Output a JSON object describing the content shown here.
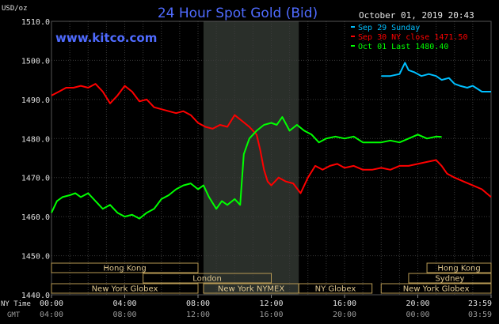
{
  "title": "24 Hour Spot Gold (Bid)",
  "timestamp": "October 01, 2019 20:43",
  "watermark": "www.kitco.com",
  "currency_label": "USD/oz",
  "colors": {
    "background": "#000000",
    "grid": "#3a3a3a",
    "title": "#4f6bff",
    "sep29": "#00bfff",
    "sep30": "#ff0000",
    "oct01": "#00ff00",
    "market_box": "#b89a54",
    "shade": "#2a2f2a"
  },
  "legend": [
    {
      "label": "Sep 29 Sunday",
      "color": "#00bfff"
    },
    {
      "label": "Sep 30 NY close 1471.50",
      "color": "#ff0000"
    },
    {
      "label": "Oct 01 Last 1480.40",
      "color": "#00ff00"
    }
  ],
  "markets": [
    {
      "label": "Hong Kong",
      "start": 0.0,
      "end": 8.0
    },
    {
      "label": "London",
      "start": 5.0,
      "end": 12.0
    },
    {
      "label": "New York Globex",
      "start": 0.0,
      "end": 8.0
    },
    {
      "label": "New York NYMEX",
      "start": 8.3,
      "end": 13.5
    },
    {
      "label": "NY Globex",
      "start": 13.5,
      "end": 17.5
    },
    {
      "label": "Hong Kong",
      "start": 20.5,
      "end": 24.0
    },
    {
      "label": "Sydney",
      "start": 19.5,
      "end": 24.0
    },
    {
      "label": "New York Globex",
      "start": 18.0,
      "end": 24.0
    }
  ],
  "bottom_axis": {
    "row1_label": "NY Time",
    "row2_label": "GMT",
    "ny_ticks": [
      "00:00",
      "04:00",
      "08:00",
      "12:00",
      "16:00",
      "20:00",
      "23:59"
    ],
    "gmt_ticks": [
      "04:00",
      "08:00",
      "12:00",
      "16:00",
      "20:00",
      "00:00",
      "03:59"
    ]
  },
  "chart_data": {
    "type": "line",
    "title": "24 Hour Spot Gold (Bid)",
    "ylabel": "USD/oz",
    "ylim": [
      1440,
      1510
    ],
    "y_ticks": [
      "1440.0",
      "1450.0",
      "1460.0",
      "1470.0",
      "1480.0",
      "1490.0",
      "1500.0",
      "1510.0"
    ],
    "y_tick_values": [
      1440,
      1450,
      1460,
      1470,
      1480,
      1490,
      1500,
      1510
    ],
    "xlim": [
      0,
      24
    ],
    "x_unit": "hours (NY time)",
    "shaded_interval": [
      8.3,
      13.5
    ],
    "grid": true,
    "series": [
      {
        "name": "Sep 29 Sunday",
        "color": "#00bfff",
        "x": [
          18.0,
          18.5,
          19.0,
          19.3,
          19.5,
          19.8,
          20.2,
          20.6,
          21.0,
          21.3,
          21.7,
          22.0,
          22.3,
          22.7,
          23.0,
          23.5,
          24.0
        ],
        "y": [
          1496.0,
          1496.0,
          1496.5,
          1499.4,
          1497.5,
          1497.0,
          1496.0,
          1496.5,
          1496.0,
          1495.0,
          1495.5,
          1494.0,
          1493.5,
          1493.0,
          1493.5,
          1492.0,
          1492.0
        ]
      },
      {
        "name": "Sep 30 NY close 1471.50",
        "color": "#ff0000",
        "x": [
          0.0,
          0.4,
          0.8,
          1.2,
          1.6,
          2.0,
          2.4,
          2.8,
          3.2,
          3.6,
          4.0,
          4.4,
          4.8,
          5.2,
          5.6,
          6.0,
          6.4,
          6.8,
          7.2,
          7.6,
          8.0,
          8.4,
          8.8,
          9.2,
          9.6,
          10.0,
          10.4,
          10.8,
          11.2,
          11.4,
          11.6,
          11.8,
          12.0,
          12.4,
          12.8,
          13.2,
          13.6,
          14.0,
          14.4,
          14.8,
          15.2,
          15.6,
          16.0,
          16.5,
          17.0,
          17.5,
          18.0,
          18.5,
          19.0,
          19.5,
          20.0,
          20.5,
          21.0,
          21.3,
          21.6,
          22.0,
          22.5,
          23.0,
          23.5,
          24.0
        ],
        "y": [
          1491.0,
          1492.0,
          1493.0,
          1493.0,
          1493.5,
          1493.0,
          1494.0,
          1492.0,
          1489.0,
          1491.0,
          1493.5,
          1492.0,
          1489.5,
          1490.0,
          1488.0,
          1487.5,
          1487.0,
          1486.5,
          1487.0,
          1486.0,
          1484.0,
          1483.0,
          1482.5,
          1483.5,
          1483.0,
          1486.0,
          1484.5,
          1483.0,
          1481.0,
          1477.0,
          1472.0,
          1469.0,
          1468.0,
          1470.0,
          1469.0,
          1468.5,
          1466.0,
          1470.0,
          1473.0,
          1472.0,
          1473.0,
          1473.5,
          1472.5,
          1473.0,
          1472.0,
          1472.0,
          1472.5,
          1472.0,
          1473.0,
          1473.0,
          1473.5,
          1474.0,
          1474.5,
          1473.0,
          1471.0,
          1470.0,
          1469.0,
          1468.0,
          1467.0,
          1465.0
        ]
      },
      {
        "name": "Oct 01 Last 1480.40",
        "color": "#00ff00",
        "x": [
          0.0,
          0.3,
          0.6,
          1.0,
          1.3,
          1.6,
          2.0,
          2.4,
          2.8,
          3.2,
          3.6,
          4.0,
          4.4,
          4.8,
          5.2,
          5.6,
          6.0,
          6.4,
          6.8,
          7.2,
          7.6,
          8.0,
          8.3,
          8.6,
          9.0,
          9.3,
          9.6,
          10.0,
          10.3,
          10.5,
          10.8,
          11.2,
          11.6,
          12.0,
          12.3,
          12.6,
          13.0,
          13.4,
          13.8,
          14.2,
          14.6,
          15.0,
          15.5,
          16.0,
          16.5,
          17.0,
          17.5,
          18.0,
          18.5,
          19.0,
          19.5,
          20.0,
          20.5,
          21.0,
          21.3
        ],
        "y": [
          1461.0,
          1464.0,
          1465.0,
          1465.5,
          1466.0,
          1465.0,
          1466.0,
          1464.0,
          1462.0,
          1463.0,
          1461.0,
          1460.0,
          1460.5,
          1459.5,
          1461.0,
          1462.0,
          1464.5,
          1465.5,
          1467.0,
          1468.0,
          1468.5,
          1467.0,
          1468.0,
          1465.0,
          1462.0,
          1464.0,
          1463.0,
          1464.5,
          1463.0,
          1476.0,
          1480.0,
          1482.0,
          1483.5,
          1484.0,
          1483.5,
          1485.5,
          1482.0,
          1483.5,
          1482.0,
          1481.0,
          1479.0,
          1480.0,
          1480.5,
          1480.0,
          1480.5,
          1479.0,
          1479.0,
          1479.0,
          1479.5,
          1479.0,
          1480.0,
          1481.0,
          1480.0,
          1480.5,
          1480.4
        ]
      }
    ]
  }
}
